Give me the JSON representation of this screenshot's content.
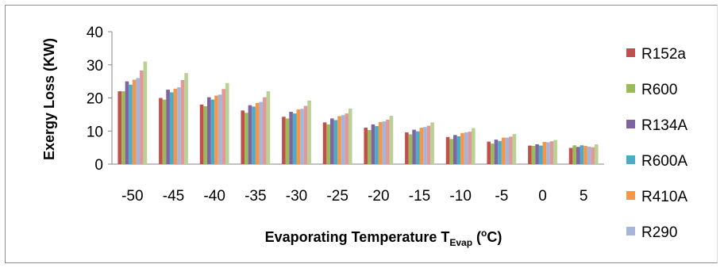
{
  "chart_data": {
    "type": "bar",
    "title": "",
    "xlabel": "Evaporating Temperature T",
    "xlabel_sub": "Evap",
    "xlabel_open": " (",
    "xlabel_sup": "o",
    "xlabel_close": "C)",
    "ylabel": "Exergy Loss (KW)",
    "ylim": [
      0,
      40
    ],
    "yticks": [
      "0",
      "10",
      "20",
      "30",
      "40"
    ],
    "categories": [
      "-50",
      "-45",
      "-40",
      "-35",
      "-30",
      "-25",
      "-20",
      "-15",
      "-10",
      "-5",
      "0",
      "5"
    ],
    "grid": false,
    "legend_position": "right",
    "series": [
      {
        "name": "R152a",
        "color": "#c0504d",
        "values": [
          22,
          20,
          18,
          16.2,
          14.3,
          12.6,
          11,
          9.6,
          8.2,
          6.8,
          5.6,
          4.9
        ]
      },
      {
        "name": "R600",
        "color": "#9bbb59",
        "values": [
          22,
          19.5,
          17.5,
          15.5,
          13.8,
          12,
          10.3,
          9,
          7.6,
          6.2,
          5.5,
          5.7
        ]
      },
      {
        "name": "R134A",
        "color": "#8064a2",
        "values": [
          25,
          22.5,
          20.2,
          17.8,
          15.8,
          13.8,
          12,
          10.4,
          8.8,
          7.4,
          6,
          5.2
        ]
      },
      {
        "name": "R600A",
        "color": "#4bacc6",
        "values": [
          24,
          21.7,
          19.5,
          17.4,
          15.3,
          13.3,
          11.5,
          9.9,
          8.4,
          7,
          5.6,
          5.7
        ]
      },
      {
        "name": "R410A",
        "color": "#f79646",
        "values": [
          25.5,
          22.8,
          20.7,
          18.5,
          16.5,
          14.5,
          12.7,
          11,
          9.4,
          8,
          6.7,
          5.5
        ]
      },
      {
        "name": "R290",
        "color": "#a5b6dc",
        "values": [
          26,
          23.2,
          21,
          18.8,
          16.7,
          14.8,
          12.9,
          11.2,
          9.6,
          8,
          6.6,
          5.3
        ]
      },
      {
        "name": "",
        "color": "#e19898",
        "values": [
          28.3,
          25.4,
          22.7,
          20.2,
          17.6,
          15.3,
          13.4,
          11.6,
          9.8,
          8.3,
          6.9,
          5.1
        ]
      },
      {
        "name": "",
        "color": "#b9d194",
        "values": [
          31,
          27.5,
          24.5,
          22,
          19.2,
          16.8,
          14.6,
          12.6,
          10.9,
          9.1,
          7.3,
          6
        ]
      }
    ]
  }
}
